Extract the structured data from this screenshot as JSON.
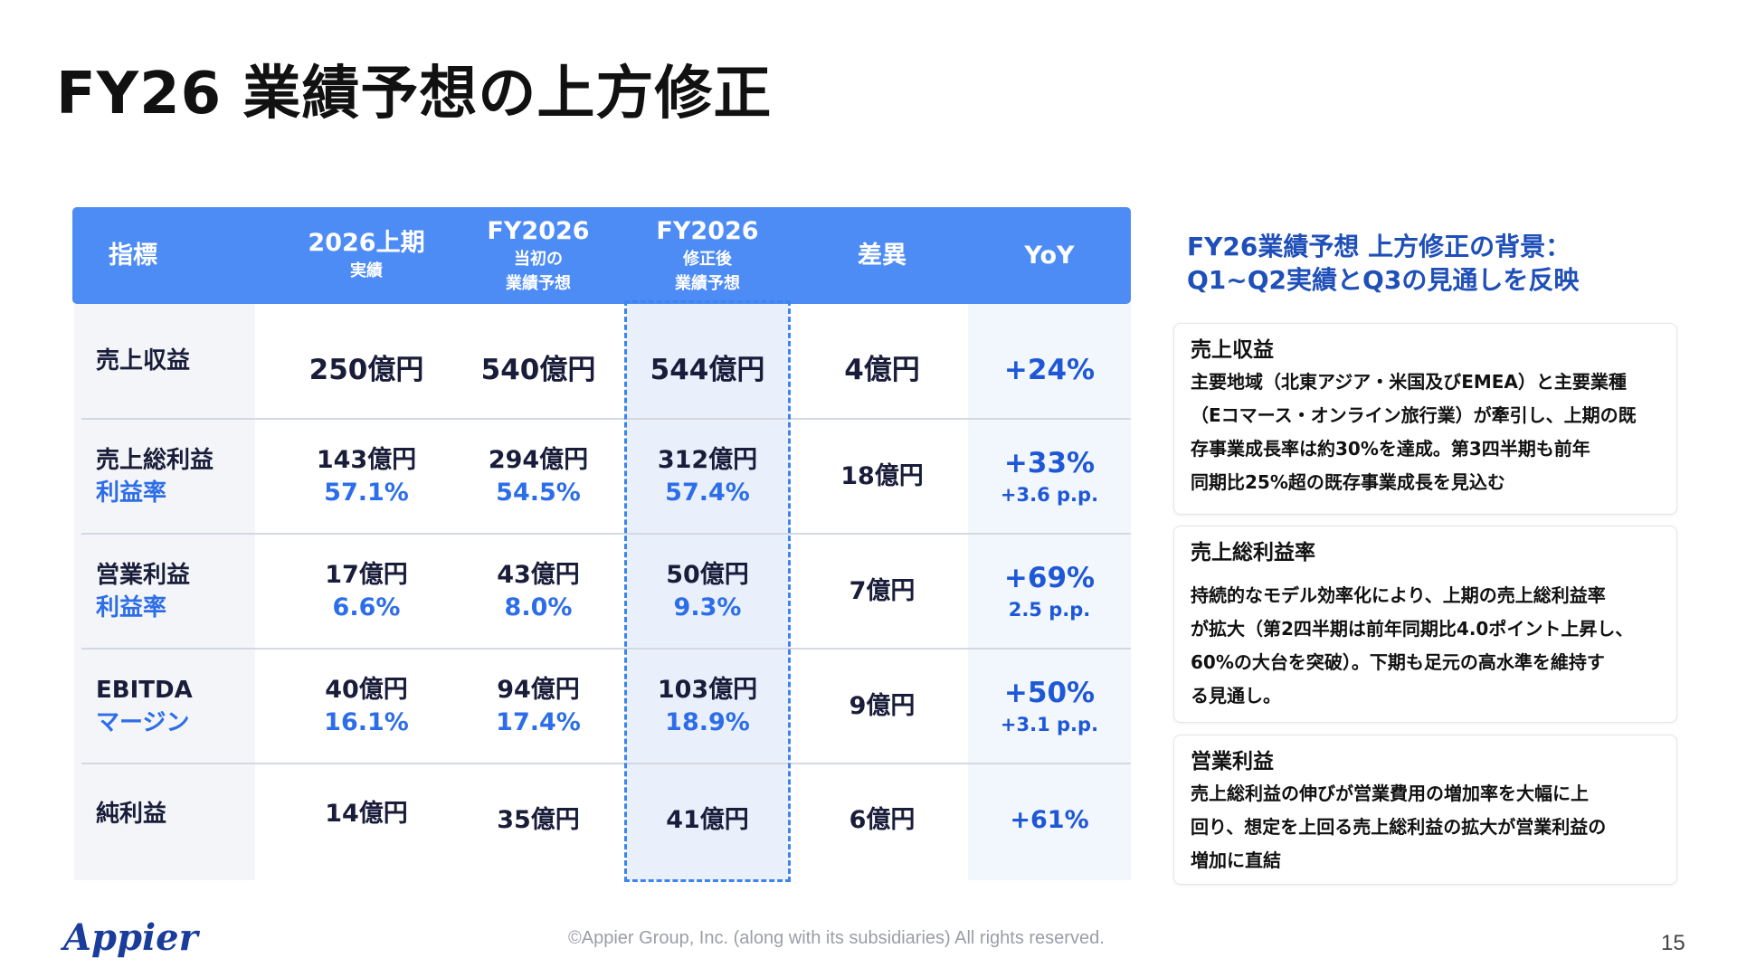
{
  "page_title": "FY26 業績予想の上方修正",
  "table": {
    "headers": [
      {
        "main": "指標",
        "sub": ""
      },
      {
        "main": "2026上期",
        "sub": "実績"
      },
      {
        "main": "FY2026",
        "sub1": "当初の",
        "sub2": "業績予想"
      },
      {
        "main": "FY2026",
        "sub1": "修正後",
        "sub2": "業績予想"
      },
      {
        "main": "差異",
        "sub": ""
      },
      {
        "main": "YoY",
        "sub": ""
      }
    ],
    "rows": [
      {
        "label": "売上収益",
        "label_sub": "",
        "h1": "250億円",
        "h1_sub": "",
        "initial": "540億円",
        "initial_sub": "",
        "revised": "544億円",
        "revised_sub": "",
        "diff": "4億円",
        "yoy": "+24%",
        "yoy_sub": ""
      },
      {
        "label": "売上総利益",
        "label_sub": "利益率",
        "h1": "143億円",
        "h1_sub": "57.1%",
        "initial": "294億円",
        "initial_sub": "54.5%",
        "revised": "312億円",
        "revised_sub": "57.4%",
        "diff": "18億円",
        "yoy": "+33%",
        "yoy_sub": "+3.6 p.p."
      },
      {
        "label": "営業利益",
        "label_sub": "利益率",
        "h1": "17億円",
        "h1_sub": "6.6%",
        "initial": "43億円",
        "initial_sub": "8.0%",
        "revised": "50億円",
        "revised_sub": "9.3%",
        "diff": "7億円",
        "yoy": "+69%",
        "yoy_sub": "2.5 p.p."
      },
      {
        "label": "EBITDA",
        "label_sub": "マージン",
        "h1": "40億円",
        "h1_sub": "16.1%",
        "initial": "94億円",
        "initial_sub": "17.4%",
        "revised": "103億円",
        "revised_sub": "18.9%",
        "diff": "9億円",
        "yoy": "+50%",
        "yoy_sub": "+3.1 p.p."
      },
      {
        "label": "純利益",
        "label_sub": "",
        "h1": "14億円",
        "h1_sub": "",
        "initial": "35億円",
        "initial_sub": "",
        "revised": "41億円",
        "revised_sub": "",
        "diff": "6億円",
        "yoy": "+61%",
        "yoy_sub": ""
      }
    ]
  },
  "panel": {
    "title_line1": "FY26業績予想 上方修正の背景：",
    "title_line2": "Q1~Q2実績とQ3の見通しを反映",
    "cards": [
      {
        "title": "売上収益",
        "lines": [
          "主要地域（北東アジア・米国及びEMEA）と主要業種",
          "（Eコマース・オンライン旅行業）が牽引し、上期の既",
          "存事業成長率は約30%を達成。第3四半期も前年",
          "同期比25%超の既存事業成長を見込む"
        ]
      },
      {
        "title": "売上総利益率",
        "lines": [
          "持続的なモデル効率化により、上期の売上総利益率",
          "が拡大（第2四半期は前年同期比4.0ポイント上昇し、",
          "60%の大台を突破）。下期も足元の高水準を維持す",
          "る見通し。"
        ]
      },
      {
        "title": "営業利益",
        "lines": [
          "売上総利益の伸びが営業費用の増加率を大幅に上",
          "回り、想定を上回る売上総利益の拡大が営業利益の",
          "増加に直結"
        ]
      }
    ]
  },
  "footer": {
    "logo": "Appier",
    "copyright": "©Appier Group, Inc. (along with its subsidiaries) All rights reserved.",
    "page_number": "15"
  },
  "colors": {
    "header_blue": "#4e8cf5",
    "accent_blue": "#2d6ee8",
    "dark_blue": "#1f4fb8",
    "highlight_col": "#eaf1fd"
  }
}
